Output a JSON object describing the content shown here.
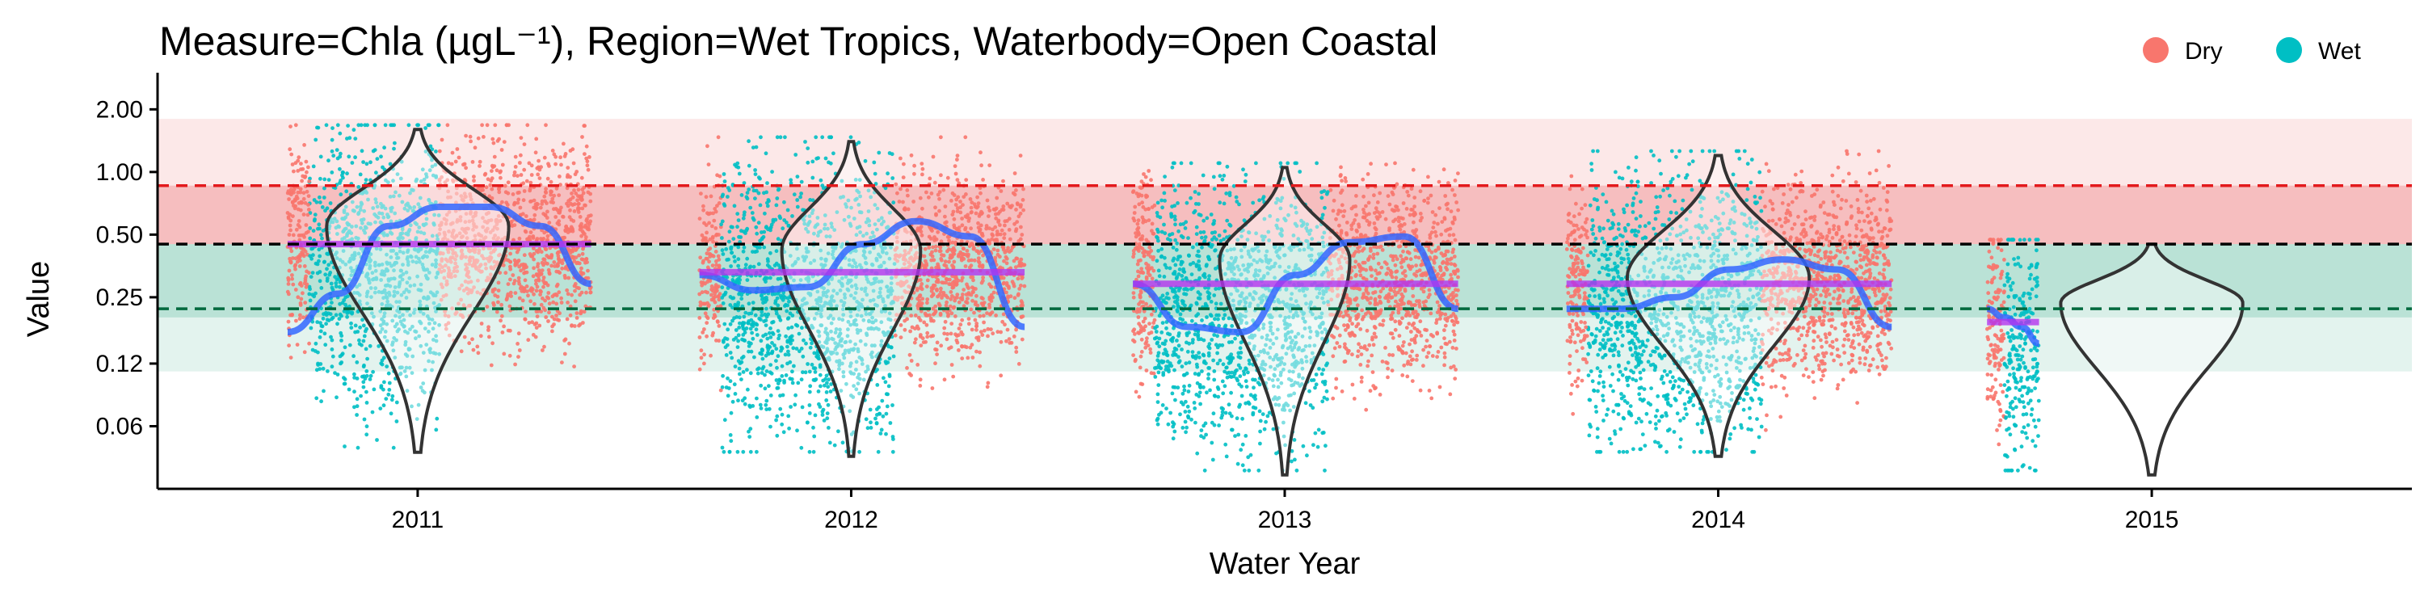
{
  "chart_data": {
    "type": "scatter",
    "title": "Measure=Chla (µgL⁻¹), Region=Wet Tropics, Waterbody=Open Coastal",
    "xlabel": "Water Year",
    "ylabel": "Value",
    "y_scale": "log",
    "ylim": [
      0.03,
      3.0
    ],
    "y_ticks": [
      0.06,
      0.12,
      0.25,
      0.5,
      1.0,
      2.0
    ],
    "y_tick_labels": [
      "0.06",
      "0.12",
      "0.25",
      "0.50",
      "1.00",
      "2.00"
    ],
    "x_ticks": [
      2011,
      2012,
      2013,
      2014,
      2015
    ],
    "x_tick_labels": [
      "2011",
      "2012",
      "2013",
      "2014",
      "2015"
    ],
    "xlim": [
      2010.4,
      2015.6
    ],
    "grid": false,
    "legend_position": "top-right",
    "legend": [
      {
        "label": "Dry",
        "color": "#F8766D"
      },
      {
        "label": "Wet",
        "color": "#00BFC4"
      }
    ],
    "guideline_bands": [
      {
        "from": 0.11,
        "to": 0.45,
        "color": "#1b9e77",
        "opacity": 0.12
      },
      {
        "from": 0.2,
        "to": 0.45,
        "color": "#1b9e77",
        "opacity": 0.2
      },
      {
        "from": 0.45,
        "to": 1.8,
        "color": "#e31a1c",
        "opacity": 0.1
      },
      {
        "from": 0.45,
        "to": 0.86,
        "color": "#e31a1c",
        "opacity": 0.2
      }
    ],
    "reference_lines": [
      {
        "value": 0.86,
        "color": "#e31a1c"
      },
      {
        "value": 0.45,
        "color": "#000000"
      },
      {
        "value": 0.22,
        "color": "#00693e"
      }
    ],
    "years": [
      {
        "year": 2011,
        "period": [
          2010.7,
          2011.4
        ],
        "wet_start": 2010.75,
        "wet_end": 2011.05,
        "mean": 0.45,
        "smooth": [
          0.17,
          0.26,
          0.55,
          0.68,
          0.68,
          0.55,
          0.29
        ],
        "violin": {
          "min": 0.045,
          "max": 1.6,
          "peak": 0.55,
          "width": 0.42
        }
      },
      {
        "year": 2012,
        "period": [
          2011.65,
          2012.4
        ],
        "wet_start": 2011.7,
        "wet_end": 2012.1,
        "mean": 0.33,
        "smooth": [
          0.32,
          0.27,
          0.28,
          0.45,
          0.58,
          0.49,
          0.18
        ],
        "violin": {
          "min": 0.043,
          "max": 1.4,
          "peak": 0.42,
          "width": 0.32
        }
      },
      {
        "year": 2013,
        "period": [
          2012.65,
          2013.4
        ],
        "wet_start": 2012.7,
        "wet_end": 2013.1,
        "mean": 0.29,
        "smooth": [
          0.29,
          0.18,
          0.17,
          0.32,
          0.46,
          0.49,
          0.22
        ],
        "violin": {
          "min": 0.035,
          "max": 1.05,
          "peak": 0.38,
          "width": 0.3
        }
      },
      {
        "year": 2014,
        "period": [
          2013.65,
          2014.4
        ],
        "wet_start": 2013.7,
        "wet_end": 2014.1,
        "mean": 0.29,
        "smooth": [
          0.22,
          0.22,
          0.25,
          0.34,
          0.38,
          0.34,
          0.18
        ],
        "violin": {
          "min": 0.043,
          "max": 1.2,
          "peak": 0.31,
          "width": 0.42
        }
      },
      {
        "year": 2015,
        "period": [
          2014.62,
          2014.74
        ],
        "wet_start": 2014.66,
        "wet_end": 2014.74,
        "mean": 0.19,
        "smooth": [
          0.22,
          0.2,
          0.18,
          0.15
        ],
        "violin": {
          "min": 0.035,
          "max": 0.45,
          "peak": 0.235,
          "width": 0.42
        }
      }
    ]
  }
}
